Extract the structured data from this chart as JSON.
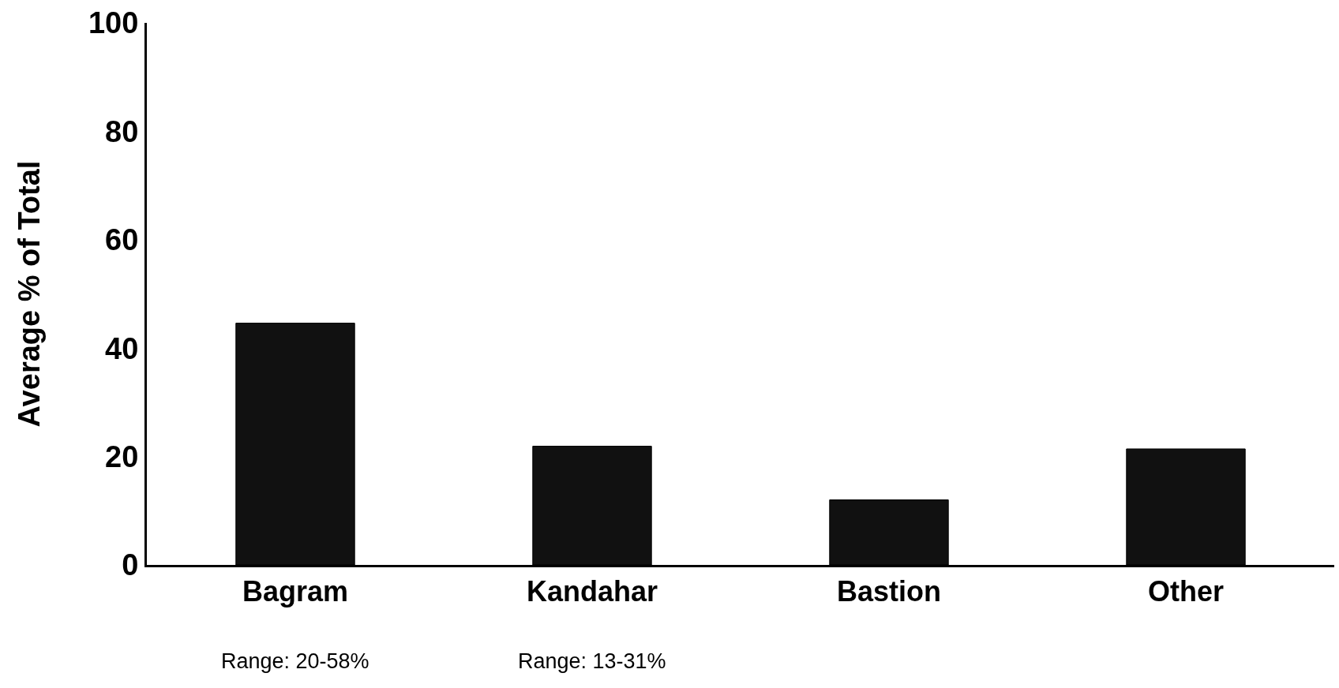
{
  "chart_data": {
    "type": "bar",
    "ylabel": "Average % of Total",
    "categories": [
      "Bagram",
      "Kandahar",
      "Bastion",
      "Other"
    ],
    "values": [
      44.6,
      21.9,
      12.0,
      21.4
    ],
    "color": "#111111",
    "ylim": [
      0,
      100
    ],
    "yticks": [
      0,
      20,
      40,
      60,
      80,
      100
    ],
    "grid": false,
    "annotations": [
      "Range: 20-58%",
      "Range: 13-31%"
    ]
  }
}
